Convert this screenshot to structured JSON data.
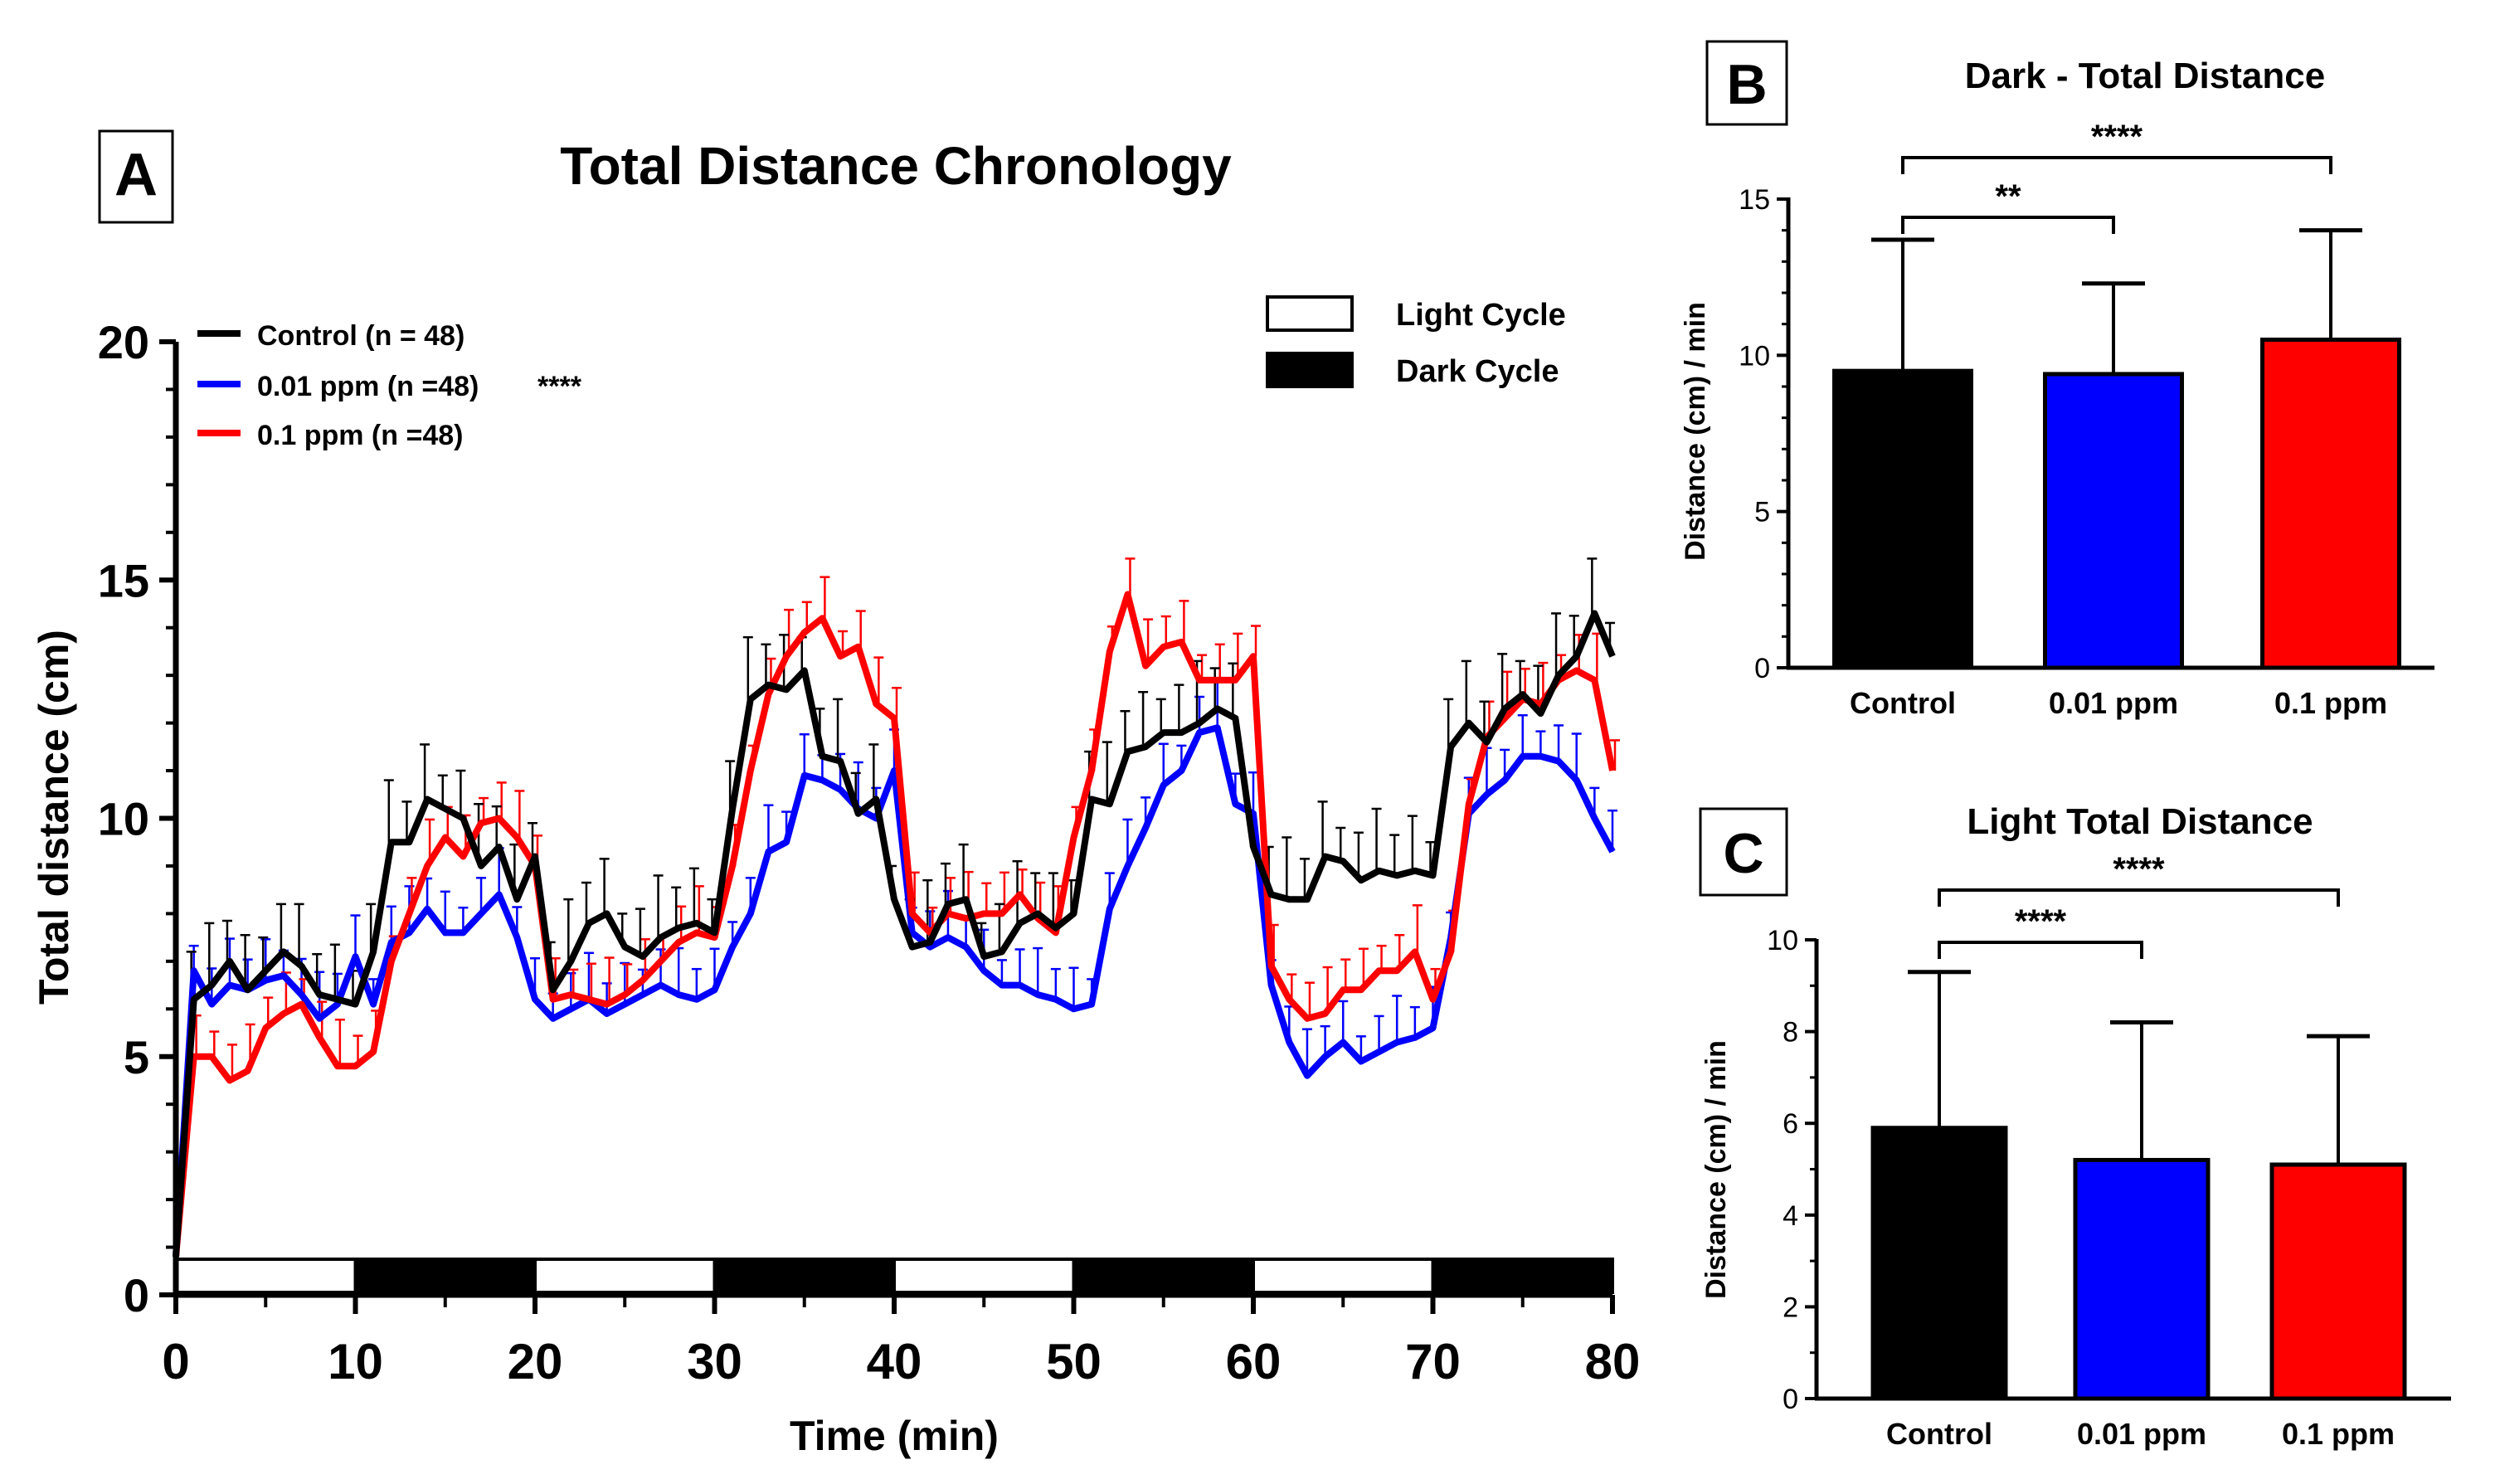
{
  "colors": {
    "control": "#000000",
    "low": "#0000ff",
    "high": "#ff0000"
  },
  "panel_a": {
    "letter": "A",
    "legend": {
      "control": "Control (n = 48)",
      "low": "0.01 ppm (n =48)",
      "high": "0.1 ppm (n =48)",
      "stars": "****",
      "light_cycle": "Light Cycle",
      "dark_cycle": "Dark Cycle"
    }
  },
  "panel_b": {
    "letter": "B"
  },
  "panel_c": {
    "letter": "C"
  },
  "chart_data": [
    {
      "type": "line",
      "title": "Total Distance Chronology",
      "xlabel": "Time (min)",
      "ylabel": "Total distance (cm)",
      "xlim": [
        0,
        80
      ],
      "ylim": [
        0,
        20
      ],
      "xticks": [
        0,
        10,
        20,
        30,
        40,
        50,
        60,
        70,
        80
      ],
      "yticks": [
        0,
        5,
        10,
        15,
        20
      ],
      "x": [
        0,
        1,
        2,
        3,
        4,
        5,
        6,
        7,
        8,
        9,
        10,
        11,
        12,
        13,
        14,
        15,
        16,
        17,
        18,
        19,
        20,
        21,
        22,
        23,
        24,
        25,
        26,
        27,
        28,
        29,
        30,
        31,
        32,
        33,
        34,
        35,
        36,
        37,
        38,
        39,
        40,
        41,
        42,
        43,
        44,
        45,
        46,
        47,
        48,
        49,
        50,
        51,
        52,
        53,
        54,
        55,
        56,
        57,
        58,
        59,
        60,
        61,
        62,
        63,
        64,
        65,
        66,
        67,
        68,
        69,
        70,
        71,
        72,
        73,
        74,
        75,
        76,
        77,
        78,
        79,
        80
      ],
      "series": [
        {
          "name": "Control (n = 48)",
          "color": "#000000",
          "values": [
            0.8,
            6.2,
            6.5,
            7.0,
            6.4,
            6.8,
            7.2,
            6.9,
            6.3,
            6.2,
            6.1,
            7.2,
            9.5,
            9.5,
            10.4,
            10.2,
            10.0,
            9.0,
            9.4,
            8.3,
            9.2,
            6.4,
            7.0,
            7.8,
            8.0,
            7.3,
            7.1,
            7.5,
            7.7,
            7.8,
            7.6,
            10.2,
            12.5,
            12.8,
            12.7,
            13.1,
            11.3,
            11.2,
            10.1,
            10.4,
            8.3,
            7.3,
            7.4,
            8.2,
            8.3,
            7.1,
            7.2,
            7.8,
            8.0,
            7.7,
            8.0,
            10.4,
            10.3,
            11.4,
            11.5,
            11.8,
            11.8,
            12.0,
            12.3,
            12.1,
            9.4,
            8.4,
            8.3,
            8.3,
            9.2,
            9.1,
            8.7,
            8.9,
            8.8,
            8.9,
            8.8,
            11.5,
            12.0,
            11.6,
            12.3,
            12.6,
            12.2,
            13.0,
            13.4,
            14.3,
            13.4
          ]
        },
        {
          "name": "0.01 ppm (n =48)",
          "color": "#0000ff",
          "values": [
            0.8,
            6.8,
            6.1,
            6.5,
            6.4,
            6.6,
            6.7,
            6.3,
            5.8,
            6.1,
            7.1,
            6.1,
            7.4,
            7.6,
            8.1,
            7.6,
            7.6,
            8.0,
            8.4,
            7.5,
            6.2,
            5.8,
            6.0,
            6.2,
            5.9,
            6.1,
            6.3,
            6.5,
            6.3,
            6.2,
            6.4,
            7.3,
            8.0,
            9.3,
            9.5,
            10.9,
            10.8,
            10.6,
            10.2,
            10.0,
            11.0,
            7.6,
            7.3,
            7.5,
            7.3,
            6.8,
            6.5,
            6.5,
            6.3,
            6.2,
            6.0,
            6.1,
            8.1,
            9.0,
            9.8,
            10.7,
            11.0,
            11.8,
            11.9,
            10.3,
            10.1,
            6.5,
            5.3,
            4.6,
            5.0,
            5.3,
            4.9,
            5.1,
            5.3,
            5.4,
            5.6,
            7.5,
            10.1,
            10.5,
            10.8,
            11.3,
            11.3,
            11.2,
            10.8,
            10.0,
            9.3
          ]
        },
        {
          "name": "0.1 ppm (n =48)",
          "color": "#ff0000",
          "values": [
            0.8,
            5.0,
            5.0,
            4.5,
            4.7,
            5.6,
            5.9,
            6.1,
            5.4,
            4.8,
            4.8,
            5.1,
            7.0,
            8.0,
            9.0,
            9.6,
            9.2,
            9.9,
            10.0,
            9.6,
            9.0,
            6.2,
            6.3,
            6.2,
            6.1,
            6.3,
            6.6,
            7.0,
            7.4,
            7.6,
            7.5,
            9.0,
            11.0,
            12.6,
            13.4,
            13.9,
            14.2,
            13.4,
            13.6,
            12.4,
            12.1,
            8.0,
            7.6,
            8.0,
            7.9,
            8.0,
            8.0,
            8.4,
            7.9,
            7.6,
            9.6,
            11.0,
            13.5,
            14.7,
            13.2,
            13.6,
            13.7,
            12.9,
            12.9,
            12.9,
            13.4,
            6.9,
            6.2,
            5.8,
            5.9,
            6.4,
            6.4,
            6.8,
            6.8,
            7.2,
            6.2,
            7.2,
            10.3,
            11.7,
            12.1,
            12.5,
            12.4,
            12.9,
            13.1,
            12.9,
            11.0
          ]
        }
      ],
      "error_plus": {
        "control": 1.0,
        "low": 0.75,
        "high": 0.75
      },
      "cycles": [
        "light",
        "dark",
        "light",
        "dark",
        "light",
        "dark",
        "light",
        "dark"
      ],
      "significance": "****"
    },
    {
      "type": "bar",
      "title": "Dark - Total Distance",
      "ylabel": "Distance (cm) / min",
      "categories": [
        "Control",
        "0.01 ppm",
        "0.1 ppm"
      ],
      "values": [
        9.5,
        9.4,
        10.5
      ],
      "error_upper": [
        13.7,
        12.3,
        14.0
      ],
      "colors": [
        "#000000",
        "#0000ff",
        "#ff0000"
      ],
      "ylim": [
        0,
        15
      ],
      "yticks": [
        0,
        5,
        10,
        15
      ],
      "brackets": [
        {
          "from": 0,
          "to": 1,
          "label": "**"
        },
        {
          "from": 0,
          "to": 2,
          "label": "****"
        }
      ]
    },
    {
      "type": "bar",
      "title": "Light Total Distance",
      "ylabel": "Distance (cm) / min",
      "categories": [
        "Control",
        "0.01 ppm",
        "0.1 ppm"
      ],
      "values": [
        5.9,
        5.2,
        5.1
      ],
      "error_upper": [
        9.3,
        8.2,
        7.9
      ],
      "colors": [
        "#000000",
        "#0000ff",
        "#ff0000"
      ],
      "ylim": [
        0,
        10
      ],
      "yticks": [
        0,
        2,
        4,
        6,
        8,
        10
      ],
      "brackets": [
        {
          "from": 0,
          "to": 1,
          "label": "****"
        },
        {
          "from": 0,
          "to": 2,
          "label": "****"
        }
      ]
    }
  ]
}
